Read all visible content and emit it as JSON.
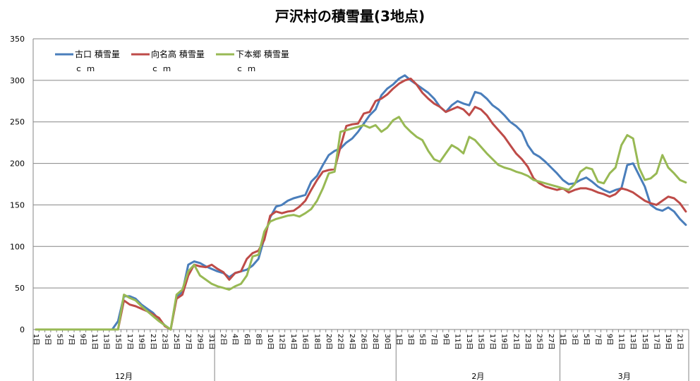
{
  "chart_data": {
    "type": "line",
    "title": "戸沢村の積雪量(3地点)",
    "ylim": [
      0,
      350
    ],
    "yticks": [
      0,
      50,
      100,
      150,
      200,
      250,
      300,
      350
    ],
    "grid": "horizontal",
    "legend_position": "top-left",
    "x": [
      "12-01",
      "12-02",
      "12-03",
      "12-04",
      "12-05",
      "12-06",
      "12-07",
      "12-08",
      "12-09",
      "12-10",
      "12-11",
      "12-12",
      "12-13",
      "12-14",
      "12-15",
      "12-16",
      "12-17",
      "12-18",
      "12-19",
      "12-20",
      "12-21",
      "12-22",
      "12-23",
      "12-24",
      "12-25",
      "12-26",
      "12-27",
      "12-28",
      "12-29",
      "12-30",
      "12-31",
      "01-01",
      "01-02",
      "01-03",
      "01-04",
      "01-05",
      "01-06",
      "01-07",
      "01-08",
      "01-09",
      "01-10",
      "01-11",
      "01-12",
      "01-13",
      "01-14",
      "01-15",
      "01-16",
      "01-17",
      "01-18",
      "01-19",
      "01-20",
      "01-21",
      "01-22",
      "01-23",
      "01-24",
      "01-25",
      "01-26",
      "01-27",
      "01-28",
      "01-29",
      "01-30",
      "01-31",
      "02-01",
      "02-02",
      "02-03",
      "02-04",
      "02-05",
      "02-06",
      "02-07",
      "02-08",
      "02-09",
      "02-10",
      "02-11",
      "02-12",
      "02-13",
      "02-14",
      "02-15",
      "02-16",
      "02-17",
      "02-18",
      "02-19",
      "02-20",
      "02-21",
      "02-22",
      "02-23",
      "02-24",
      "02-25",
      "02-26",
      "02-27",
      "02-28",
      "03-01",
      "03-02",
      "03-03",
      "03-04",
      "03-05",
      "03-06",
      "03-07",
      "03-08",
      "03-09",
      "03-10",
      "03-11",
      "03-12",
      "03-13",
      "03-14",
      "03-15",
      "03-16",
      "03-17",
      "03-18",
      "03-19",
      "03-20",
      "03-21",
      "03-22"
    ],
    "x_tick_labels": [
      "1日",
      "",
      "3日",
      "",
      "5日",
      "",
      "7日",
      "",
      "9日",
      "",
      "11日",
      "",
      "13日",
      "",
      "15日",
      "",
      "17日",
      "",
      "19日",
      "",
      "21日",
      "",
      "23日",
      "",
      "25日",
      "",
      "27日",
      "",
      "29日",
      "",
      "31日",
      "",
      "2日",
      "",
      "4日",
      "",
      "6日",
      "",
      "8日",
      "",
      "10日",
      "",
      "12日",
      "",
      "14日",
      "",
      "16日",
      "",
      "18日",
      "",
      "20日",
      "",
      "22日",
      "",
      "24日",
      "",
      "26日",
      "",
      "28日",
      "",
      "30日",
      "",
      "1日",
      "",
      "3日",
      "",
      "5日",
      "",
      "7日",
      "",
      "9日",
      "",
      "11日",
      "",
      "13日",
      "",
      "15日",
      "",
      "17日",
      "",
      "19日",
      "",
      "21日",
      "",
      "23日",
      "",
      "25日",
      "",
      "27日",
      "",
      "1日",
      "",
      "3日",
      "",
      "5日",
      "",
      "7日",
      "",
      "9日",
      "",
      "11日",
      "",
      "13日",
      "",
      "15日",
      "",
      "17日",
      "",
      "19日",
      "",
      "21日",
      ""
    ],
    "month_groups": [
      {
        "label": "12月",
        "start": 0,
        "end": 30
      },
      {
        "label": "",
        "start": 31,
        "end": 61
      },
      {
        "label": "2月",
        "start": 62,
        "end": 89
      },
      {
        "label": "3月",
        "start": 90,
        "end": 111
      }
    ],
    "series": [
      {
        "name": "古口 積雪量",
        "unit": "ｃｍ",
        "color": "#4a7ebb",
        "values": [
          0,
          0,
          0,
          0,
          0,
          0,
          0,
          0,
          0,
          0,
          0,
          0,
          0,
          0,
          10,
          40,
          40,
          37,
          30,
          25,
          20,
          12,
          5,
          0,
          40,
          45,
          78,
          82,
          80,
          76,
          73,
          70,
          68,
          63,
          68,
          70,
          72,
          77,
          85,
          110,
          135,
          148,
          150,
          155,
          158,
          160,
          162,
          178,
          185,
          198,
          210,
          215,
          218,
          225,
          230,
          238,
          248,
          258,
          265,
          282,
          290,
          295,
          302,
          306,
          300,
          295,
          290,
          285,
          278,
          268,
          262,
          270,
          275,
          272,
          270,
          286,
          284,
          278,
          270,
          265,
          258,
          250,
          245,
          238,
          222,
          212,
          208,
          202,
          195,
          188,
          180,
          175,
          176,
          180,
          183,
          178,
          172,
          168,
          165,
          168,
          170,
          198,
          200,
          186,
          172,
          150,
          145,
          143,
          147,
          142,
          133,
          126
        ]
      },
      {
        "name": "向名高 積雪量",
        "unit": "ｃｍ",
        "color": "#be4b48",
        "values": [
          0,
          0,
          0,
          0,
          0,
          0,
          0,
          0,
          0,
          0,
          0,
          0,
          0,
          0,
          0,
          35,
          30,
          28,
          25,
          22,
          18,
          14,
          4,
          0,
          37,
          42,
          65,
          78,
          76,
          75,
          78,
          73,
          69,
          60,
          68,
          70,
          85,
          92,
          95,
          108,
          137,
          142,
          140,
          142,
          143,
          148,
          155,
          168,
          180,
          190,
          192,
          193,
          220,
          245,
          247,
          248,
          260,
          262,
          275,
          278,
          283,
          290,
          296,
          300,
          302,
          295,
          285,
          278,
          272,
          268,
          262,
          265,
          268,
          265,
          258,
          268,
          265,
          258,
          248,
          240,
          232,
          222,
          212,
          205,
          196,
          182,
          176,
          172,
          170,
          168,
          170,
          165,
          168,
          170,
          170,
          168,
          165,
          163,
          160,
          163,
          170,
          168,
          165,
          160,
          155,
          152,
          150,
          155,
          160,
          158,
          152,
          142
        ]
      },
      {
        "name": "下本郷 積雪量",
        "unit": "ｃｍ",
        "color": "#98b954",
        "values": [
          0,
          0,
          0,
          0,
          0,
          0,
          0,
          0,
          0,
          0,
          0,
          0,
          0,
          0,
          0,
          42,
          38,
          35,
          28,
          22,
          16,
          10,
          5,
          0,
          42,
          48,
          70,
          78,
          65,
          60,
          55,
          52,
          50,
          48,
          52,
          55,
          65,
          88,
          90,
          118,
          130,
          133,
          135,
          137,
          138,
          136,
          140,
          145,
          155,
          170,
          188,
          190,
          238,
          240,
          242,
          244,
          246,
          243,
          246,
          238,
          243,
          252,
          256,
          245,
          238,
          232,
          228,
          215,
          205,
          202,
          212,
          222,
          218,
          212,
          232,
          228,
          220,
          212,
          205,
          198,
          195,
          193,
          190,
          188,
          185,
          180,
          178,
          176,
          174,
          172,
          170,
          168,
          175,
          190,
          195,
          193,
          178,
          176,
          188,
          195,
          222,
          234,
          230,
          195,
          180,
          182,
          188,
          210,
          195,
          188,
          180,
          177
        ]
      }
    ]
  }
}
